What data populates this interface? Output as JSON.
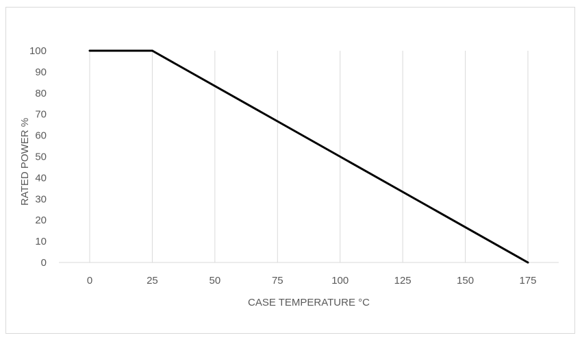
{
  "chart_data": {
    "type": "line",
    "title": "",
    "xlabel": "CASE TEMPERATURE °C",
    "ylabel": "RATED POWER  %",
    "x_ticks": [
      "0",
      "25",
      "50",
      "75",
      "100",
      "125",
      "150",
      "175"
    ],
    "y_ticks": [
      "0",
      "10",
      "20",
      "30",
      "40",
      "50",
      "60",
      "70",
      "80",
      "90",
      "100"
    ],
    "xlim": [
      0,
      175
    ],
    "ylim": [
      0,
      100
    ],
    "grid": "vertical",
    "legend": "none",
    "series": [
      {
        "name": "Rated Power",
        "x": [
          0,
          25,
          175
        ],
        "y": [
          100,
          100,
          0
        ],
        "color": "#000000"
      }
    ]
  }
}
